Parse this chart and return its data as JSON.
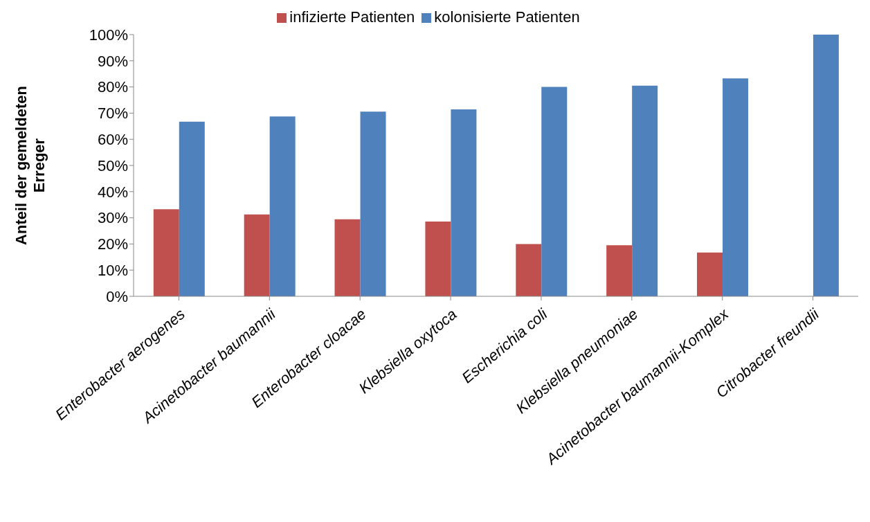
{
  "chart_data": {
    "type": "bar",
    "ylabel": "Anteil der gemeldeten Erreger",
    "categories": [
      "Enterobacter aerogenes",
      "Acinetobacter baumannii",
      "Enterobacter cloacae",
      "Klebsiella oxytoca",
      "Escherichia coli",
      "Klebsiella pneumoniae",
      "Acinetobacter baumannii-Komplex",
      "Citrobacter freundii"
    ],
    "series": [
      {
        "name": "infizierte Patienten",
        "color": "#c0504d",
        "values": [
          33.3,
          31.3,
          29.4,
          28.6,
          20.0,
          19.5,
          16.7,
          0
        ]
      },
      {
        "name": "kolonisierte Patienten",
        "color": "#4f81bd",
        "values": [
          66.7,
          68.7,
          70.6,
          71.4,
          80.0,
          80.5,
          83.3,
          100
        ]
      }
    ],
    "ylim": [
      0,
      100
    ],
    "yticks": [
      {
        "value": 0,
        "label": "0%"
      },
      {
        "value": 10,
        "label": "10%"
      },
      {
        "value": 20,
        "label": "20%"
      },
      {
        "value": 30,
        "label": "30%"
      },
      {
        "value": 40,
        "label": "40%"
      },
      {
        "value": 50,
        "label": "50%"
      },
      {
        "value": 60,
        "label": "60%"
      },
      {
        "value": 70,
        "label": "70%"
      },
      {
        "value": 80,
        "label": "80%"
      },
      {
        "value": 90,
        "label": "90%"
      },
      {
        "value": 100,
        "label": "100%"
      }
    ],
    "grid": false,
    "legend": "top"
  }
}
